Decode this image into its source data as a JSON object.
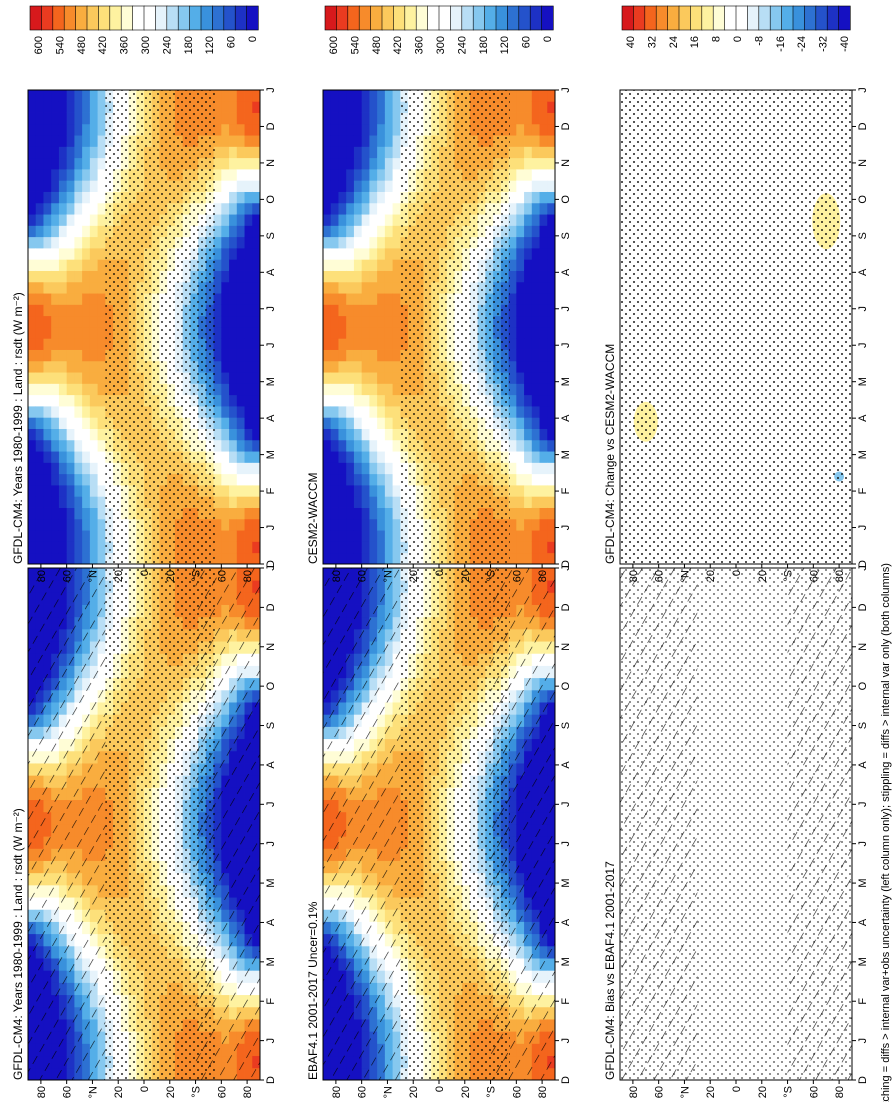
{
  "figure": {
    "footnote": "hatching = diffs > internal var+obs uncertainty (left column only); stippling = diffs > internal var only (both columns)"
  },
  "months": [
    "D",
    "J",
    "F",
    "M",
    "A",
    "M",
    "J",
    "J",
    "A",
    "S",
    "O",
    "N",
    "D",
    "J"
  ],
  "lat_labels": [
    "80",
    "60",
    "°N",
    "20",
    "0",
    "20",
    "°S",
    "60",
    "80"
  ],
  "chart_data": [
    {
      "type": "heatmap",
      "title": "GFDL-CM4: Years 1980-1999 : Land : rsdt (W m⁻²)",
      "field": "rsdt",
      "units": "W m⁻²",
      "x": [
        "D",
        "J",
        "F",
        "M",
        "A",
        "M",
        "J",
        "J",
        "A",
        "S",
        "O",
        "N",
        "D",
        "J"
      ],
      "y_labels": [
        "80",
        "60",
        "°N",
        "20",
        "0",
        "20",
        "°S",
        "60",
        "80"
      ],
      "colorbar": {
        "ticks": [
          "600",
          "540",
          "480",
          "420",
          "360",
          "300",
          "240",
          "180",
          "120",
          "60",
          "0"
        ]
      },
      "overlay": "hatching and stippling",
      "row": 0,
      "col": 0
    },
    {
      "type": "heatmap",
      "title": "GFDL-CM4: Years 1980-1999 : Land : rsdt (W m⁻²)",
      "field": "rsdt",
      "units": "W m⁻²",
      "x": [
        "D",
        "J",
        "F",
        "M",
        "A",
        "M",
        "J",
        "J",
        "A",
        "S",
        "O",
        "N",
        "D",
        "J"
      ],
      "y_labels": [
        "80",
        "60",
        "°N",
        "20",
        "0",
        "20",
        "°S",
        "60",
        "80"
      ],
      "colorbar": {
        "ticks": [
          "600",
          "540",
          "480",
          "420",
          "360",
          "300",
          "240",
          "180",
          "120",
          "60",
          "0"
        ]
      },
      "overlay": "stippling",
      "row": 0,
      "col": 1
    },
    {
      "type": "heatmap",
      "title": "EBAF4.1 2001-2017 Uncer=0.1%",
      "field": "rsdt",
      "units": "W m⁻²",
      "x": [
        "D",
        "J",
        "F",
        "M",
        "A",
        "M",
        "J",
        "J",
        "A",
        "S",
        "O",
        "N",
        "D",
        "J"
      ],
      "y_labels": [
        "80",
        "60",
        "°N",
        "20",
        "0",
        "20",
        "°S",
        "60",
        "80"
      ],
      "colorbar": {
        "ticks": [
          "600",
          "540",
          "480",
          "420",
          "360",
          "300",
          "240",
          "180",
          "120",
          "60",
          "0"
        ]
      },
      "overlay": "hatching and stippling",
      "row": 1,
      "col": 0
    },
    {
      "type": "heatmap",
      "title": "CESM2-WACCM",
      "field": "rsdt",
      "units": "W m⁻²",
      "x": [
        "D",
        "J",
        "F",
        "M",
        "A",
        "M",
        "J",
        "J",
        "A",
        "S",
        "O",
        "N",
        "D",
        "J"
      ],
      "y_labels": [
        "80",
        "60",
        "°N",
        "20",
        "0",
        "20",
        "°S",
        "60",
        "80"
      ],
      "colorbar": {
        "ticks": [
          "600",
          "540",
          "480",
          "420",
          "360",
          "300",
          "240",
          "180",
          "120",
          "60",
          "0"
        ]
      },
      "overlay": "stippling",
      "row": 1,
      "col": 1
    },
    {
      "type": "heatmap",
      "title": "GFDL-CM4: Bias vs EBAF4.1 2001-2017",
      "field": "rsdt difference",
      "units": "W m⁻²",
      "x": [
        "D",
        "J",
        "F",
        "M",
        "A",
        "M",
        "J",
        "J",
        "A",
        "S",
        "O",
        "N",
        "D",
        "J"
      ],
      "y_labels": [
        "80",
        "60",
        "°N",
        "20",
        "0",
        "20",
        "°S",
        "60",
        "80"
      ],
      "colorbar": {
        "ticks": [
          "40",
          "32",
          "24",
          "16",
          "8",
          "0",
          "-8",
          "-16",
          "-24",
          "-32",
          "-40"
        ]
      },
      "overlay": "hatching and stippling",
      "row": 2,
      "col": 0
    },
    {
      "type": "heatmap",
      "title": "GFDL-CM4: Change vs CESM2-WACCM",
      "field": "rsdt difference",
      "units": "W m⁻²",
      "x": [
        "D",
        "J",
        "F",
        "M",
        "A",
        "M",
        "J",
        "J",
        "A",
        "S",
        "O",
        "N",
        "D",
        "J"
      ],
      "y_labels": [
        "80",
        "60",
        "°N",
        "20",
        "0",
        "20",
        "°S",
        "60",
        "80"
      ],
      "colorbar": {
        "ticks": [
          "40",
          "32",
          "24",
          "16",
          "8",
          "0",
          "-8",
          "-16",
          "-24",
          "-32",
          "-40"
        ]
      },
      "overlay": "stippling",
      "row": 2,
      "col": 1
    }
  ],
  "palettes": {
    "absolute": [
      "#d7191c",
      "#ea3b20",
      "#f4651d",
      "#f78b2b",
      "#f9ad3f",
      "#fbc95c",
      "#fde07a",
      "#fef2a0",
      "#fffdd6",
      "#ffffff",
      "#ffffff",
      "#e6f3fb",
      "#b8def5",
      "#86c8ef",
      "#54aee8",
      "#3991dc",
      "#2d71d2",
      "#2452cb",
      "#1d31c5",
      "#1510c2"
    ],
    "diff": [
      "#d7191c",
      "#ea3b20",
      "#f4651d",
      "#f78b2b",
      "#f9ad3f",
      "#fbc95c",
      "#fde07a",
      "#fef2a0",
      "#fffdd6",
      "#ffffff",
      "#ffffff",
      "#e6f3fb",
      "#b8def5",
      "#86c8ef",
      "#54aee8",
      "#3991dc",
      "#2d71d2",
      "#2452cb",
      "#1d31c5",
      "#1510c2"
    ]
  }
}
